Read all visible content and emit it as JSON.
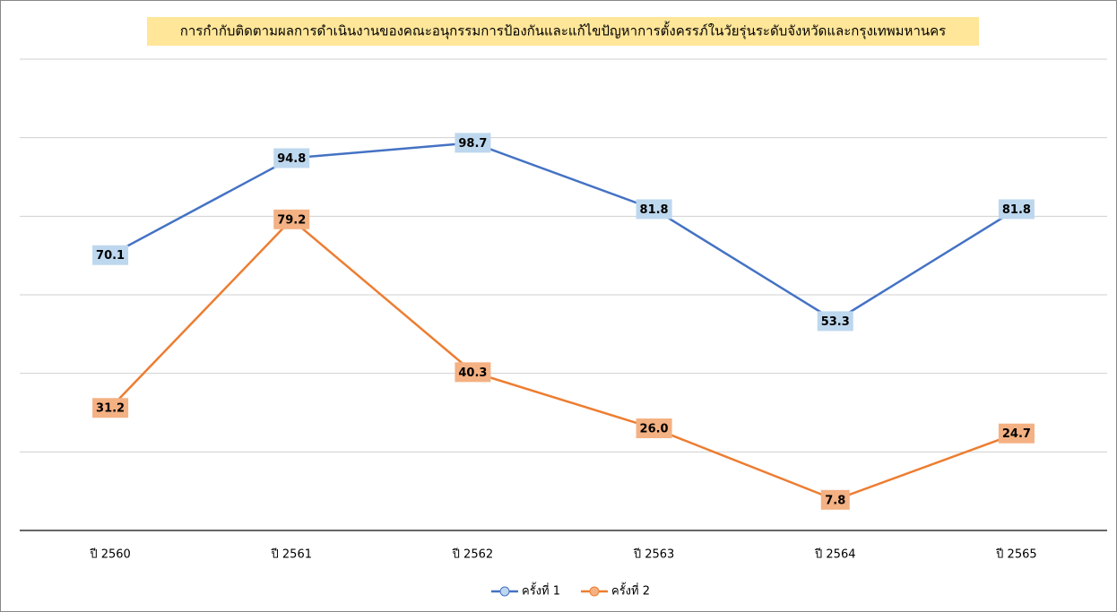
{
  "chart_data": {
    "type": "line",
    "title": "การกำกับติดตามผลการดำเนินงานของคณะอนุกรรมการป้องกันและแก้ไขปัญหาการตั้งครรภ์ในวัยรุ่นระดับจังหวัดและกรุงเทพมหานคร",
    "categories": [
      "ปี 2560",
      "ปี 2561",
      "ปี 2562",
      "ปี 2563",
      "ปี 2564",
      "ปี 2565"
    ],
    "series": [
      {
        "name": "ครั้งที่ 1",
        "color": "#4472c4",
        "label_color": "#bdd7ee",
        "values": [
          70.1,
          94.8,
          98.7,
          81.8,
          53.3,
          81.8
        ],
        "value_labels": [
          "70.1",
          "94.8",
          "98.7",
          "81.8",
          "53.3",
          "81.8"
        ]
      },
      {
        "name": "ครั้งที่ 2",
        "color": "#ed7d31",
        "label_color": "#f4b183",
        "values": [
          31.2,
          79.2,
          40.3,
          26,
          7.8,
          24.7
        ],
        "value_labels": [
          "31.2",
          "79.2",
          "40.3",
          "26.0",
          "7.8",
          "24.7"
        ]
      }
    ],
    "ylim": [
      0,
      120
    ],
    "yticks": [
      0,
      20,
      40,
      60,
      80,
      100,
      120
    ],
    "grid": true,
    "legend": "bottom"
  }
}
